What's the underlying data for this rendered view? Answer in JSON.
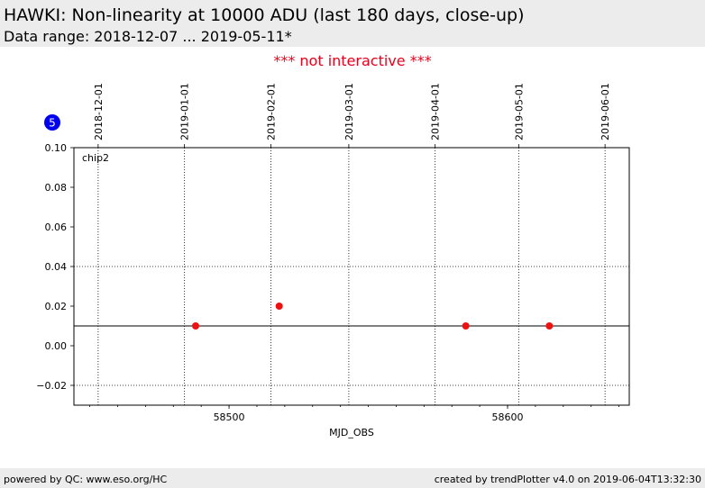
{
  "header": {
    "title": "HAWKI: Non-linearity at 10000 ADU (last 180 days, close-up)",
    "subtitle": "Data range: 2018-12-07 ... 2019-05-11*"
  },
  "notice": "*** not interactive ***",
  "badge": {
    "text": "5",
    "color": "#0000ee"
  },
  "footer": {
    "left": "powered by QC: www.eso.org/HC",
    "right": "created by trendPlotter v4.0 on 2019-06-04T13:32:30"
  },
  "chart_data": {
    "type": "scatter",
    "panel_label": "chip2",
    "xlabel": "MJD_OBS",
    "ylabel": "",
    "xlim": [
      58444.3,
      58643.7
    ],
    "ylim": [
      -0.03,
      0.1
    ],
    "x_ticks": [
      58500,
      58600
    ],
    "x_minor_step": 10,
    "y_ticks": [
      -0.02,
      0.0,
      0.02,
      0.04,
      0.06,
      0.08,
      0.1
    ],
    "y_tick_labels": [
      "−0.02",
      "0.00",
      "0.02",
      "0.04",
      "0.06",
      "0.08",
      "0.10"
    ],
    "date_ticks": [
      {
        "label": "2018-12-01",
        "mjd": 58453
      },
      {
        "label": "2019-01-01",
        "mjd": 58484
      },
      {
        "label": "2019-02-01",
        "mjd": 58515
      },
      {
        "label": "2019-03-01",
        "mjd": 58543
      },
      {
        "label": "2019-04-01",
        "mjd": 58574
      },
      {
        "label": "2019-05-01",
        "mjd": 58604
      },
      {
        "label": "2019-06-01",
        "mjd": 58635
      }
    ],
    "reference_line": 0.01,
    "threshold_lines": [
      -0.02,
      0.04
    ],
    "series": [
      {
        "color": "#ee1111",
        "points": [
          {
            "x": 58488,
            "y": 0.01
          },
          {
            "x": 58518,
            "y": 0.02
          },
          {
            "x": 58585,
            "y": 0.01
          },
          {
            "x": 58615,
            "y": 0.01
          }
        ]
      }
    ]
  }
}
